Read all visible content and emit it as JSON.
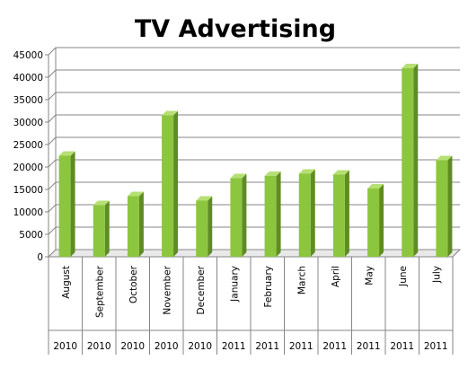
{
  "chart_data": {
    "type": "bar",
    "title": "TV Advertising",
    "categories": [
      "August",
      "September",
      "October",
      "November",
      "December",
      "January",
      "February",
      "March",
      "April",
      "May",
      "June",
      "July"
    ],
    "years": [
      "2010",
      "2010",
      "2010",
      "2010",
      "2010",
      "2011",
      "2011",
      "2011",
      "2011",
      "2011",
      "2011",
      "2011"
    ],
    "values": [
      22500,
      11500,
      13500,
      31500,
      12500,
      17500,
      18000,
      18500,
      18300,
      15200,
      42000,
      21500
    ],
    "ylim": [
      0,
      45000
    ],
    "yticks": [
      "0",
      "5000",
      "10000",
      "15000",
      "20000",
      "25000",
      "30000",
      "35000",
      "40000",
      "45000"
    ],
    "grid": true,
    "bar_color": "#8cc63f",
    "bar_side_color": "#5f8c22",
    "bar_top_color": "#b6df74"
  }
}
